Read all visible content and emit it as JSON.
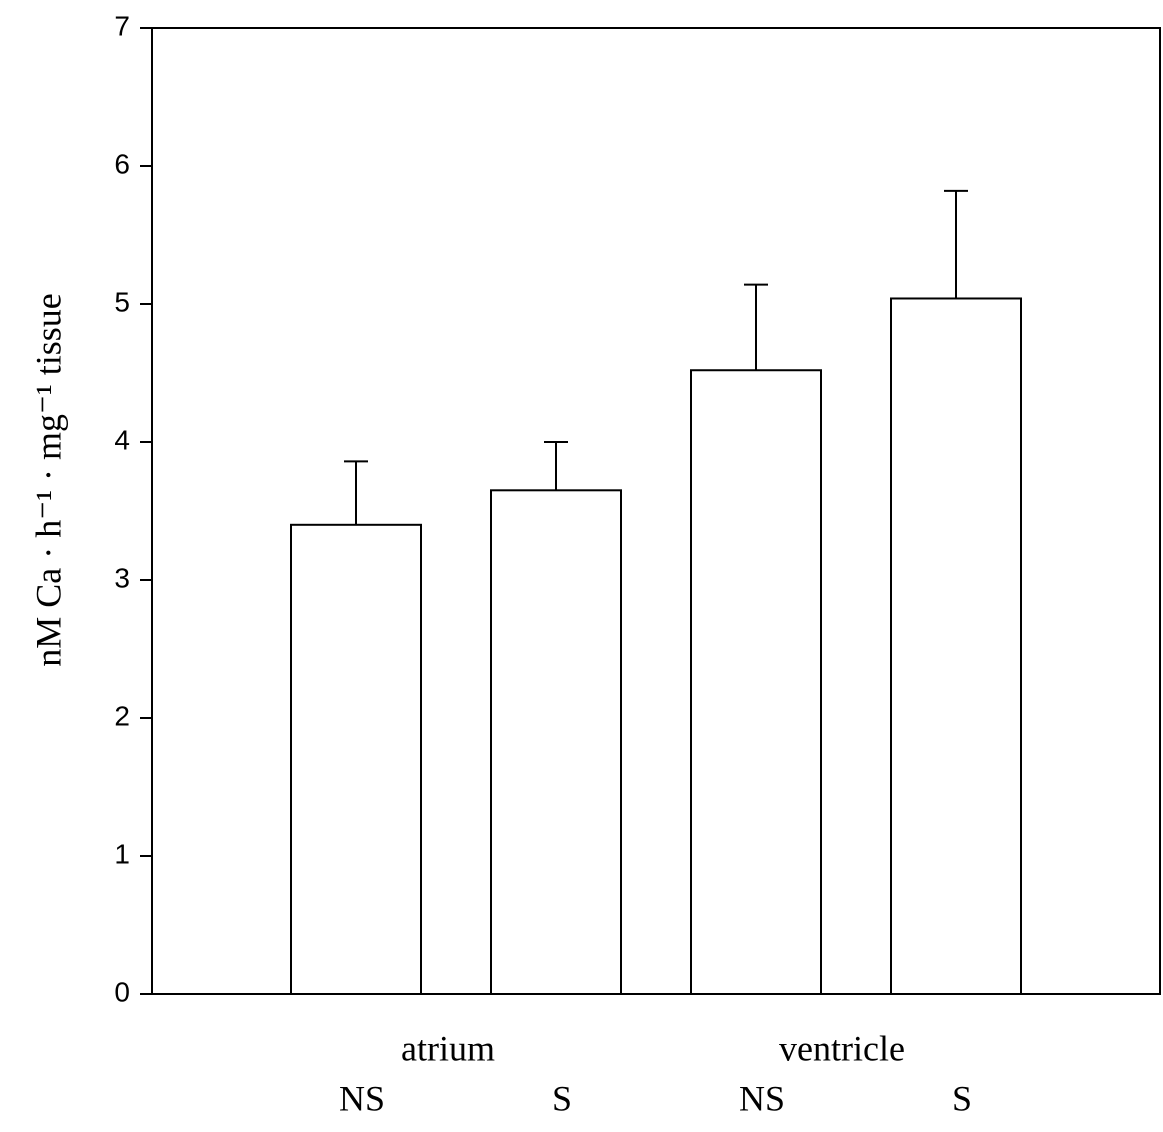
{
  "chart_data": {
    "type": "bar",
    "ylabel": "nM Ca · h⁻¹ · mg⁻¹ tissue",
    "categories": [
      "NS",
      "S",
      "NS",
      "S"
    ],
    "group_labels": [
      "atrium",
      "ventricle"
    ],
    "values": [
      3.4,
      3.65,
      4.52,
      5.04
    ],
    "errors": [
      0.46,
      0.35,
      0.62,
      0.78
    ],
    "color": "#ffffff",
    "ylim": [
      0,
      7
    ],
    "yticks": [
      0,
      1,
      2,
      3,
      4,
      5,
      6,
      7
    ],
    "grid": false
  }
}
